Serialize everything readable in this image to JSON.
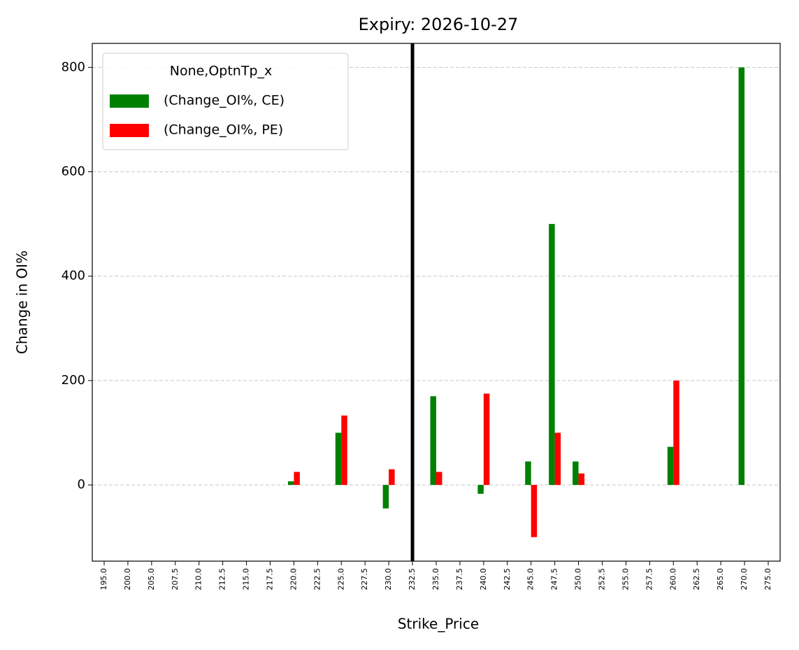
{
  "chart_data": {
    "type": "bar",
    "title": "Expiry: 2026-10-27",
    "x_label": "Strike_Price",
    "y_label": "Change in OI%",
    "categories": [
      "195.0",
      "200.0",
      "205.0",
      "207.5",
      "210.0",
      "212.5",
      "215.0",
      "217.5",
      "220.0",
      "222.5",
      "225.0",
      "227.5",
      "230.0",
      "232.5",
      "235.0",
      "237.5",
      "240.0",
      "242.5",
      "245.0",
      "247.5",
      "250.0",
      "252.5",
      "255.0",
      "257.5",
      "260.0",
      "262.5",
      "265.0",
      "270.0",
      "275.0"
    ],
    "series": [
      {
        "name": "(Change_OI%, CE)",
        "color": "#008000",
        "values": [
          null,
          null,
          null,
          null,
          null,
          null,
          null,
          null,
          7,
          null,
          100,
          null,
          -45,
          null,
          170,
          null,
          -17,
          null,
          45,
          500,
          45,
          null,
          null,
          null,
          73,
          null,
          null,
          800,
          null
        ]
      },
      {
        "name": "(Change_OI%, PE)",
        "color": "#ff0000",
        "values": [
          null,
          null,
          null,
          null,
          null,
          null,
          null,
          null,
          25,
          null,
          133,
          null,
          30,
          null,
          25,
          null,
          175,
          null,
          -100,
          100,
          22,
          null,
          null,
          null,
          200,
          null,
          null,
          null,
          null
        ]
      }
    ],
    "legend_title": "None,OptnTp_x",
    "legend": "upper left",
    "vline": 232.5,
    "ylim": [
      -146,
      846
    ],
    "yticks": [
      0,
      200,
      400,
      600,
      800
    ],
    "grid": true
  }
}
